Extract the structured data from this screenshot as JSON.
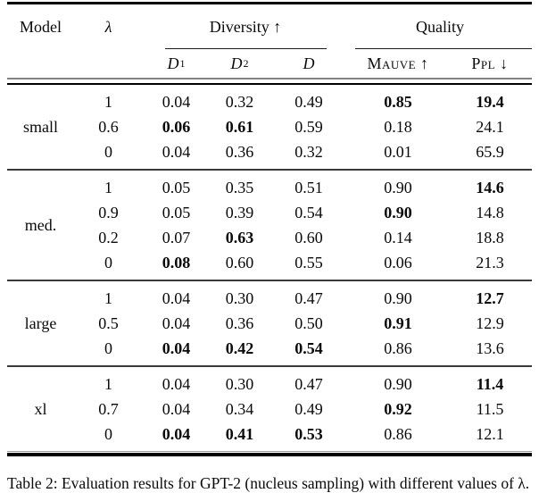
{
  "table": {
    "col_headers": {
      "model": "Model",
      "lambda": "λ",
      "diversity": "Diversity ↑",
      "quality": "Quality",
      "d_base": "D",
      "d1_sub": "1",
      "d2_sub": "2",
      "mauve": "Mauve ↑",
      "ppl": "Ppl ↓"
    },
    "groups": [
      {
        "model": "small",
        "rows": [
          {
            "lambda": "1",
            "cells": [
              {
                "v": "0.04"
              },
              {
                "v": "0.32"
              },
              {
                "v": "0.49"
              },
              {
                "v": "0.85",
                "b": true
              },
              {
                "v": "19.4",
                "b": true
              }
            ]
          },
          {
            "lambda": "0.6",
            "cells": [
              {
                "v": "0.06",
                "b": true
              },
              {
                "v": "0.61",
                "b": true
              },
              {
                "v": "0.59"
              },
              {
                "v": "0.18"
              },
              {
                "v": "24.1"
              }
            ]
          },
          {
            "lambda": "0",
            "cells": [
              {
                "v": "0.04"
              },
              {
                "v": "0.36"
              },
              {
                "v": "0.32"
              },
              {
                "v": "0.01"
              },
              {
                "v": "65.9"
              }
            ]
          }
        ]
      },
      {
        "model": "med.",
        "rows": [
          {
            "lambda": "1",
            "cells": [
              {
                "v": "0.05"
              },
              {
                "v": "0.35"
              },
              {
                "v": "0.51"
              },
              {
                "v": "0.90"
              },
              {
                "v": "14.6",
                "b": true
              }
            ]
          },
          {
            "lambda": "0.9",
            "cells": [
              {
                "v": "0.05"
              },
              {
                "v": "0.39"
              },
              {
                "v": "0.54"
              },
              {
                "v": "0.90",
                "b": true
              },
              {
                "v": "14.8"
              }
            ]
          },
          {
            "lambda": "0.2",
            "cells": [
              {
                "v": "0.07"
              },
              {
                "v": "0.63",
                "b": true
              },
              {
                "v": "0.60"
              },
              {
                "v": "0.14"
              },
              {
                "v": "18.8"
              }
            ]
          },
          {
            "lambda": "0",
            "cells": [
              {
                "v": "0.08",
                "b": true
              },
              {
                "v": "0.60"
              },
              {
                "v": "0.55"
              },
              {
                "v": "0.06"
              },
              {
                "v": "21.3"
              }
            ]
          }
        ]
      },
      {
        "model": "large",
        "rows": [
          {
            "lambda": "1",
            "cells": [
              {
                "v": "0.04"
              },
              {
                "v": "0.30"
              },
              {
                "v": "0.47"
              },
              {
                "v": "0.90"
              },
              {
                "v": "12.7",
                "b": true
              }
            ]
          },
          {
            "lambda": "0.5",
            "cells": [
              {
                "v": "0.04"
              },
              {
                "v": "0.36"
              },
              {
                "v": "0.50"
              },
              {
                "v": "0.91",
                "b": true
              },
              {
                "v": "12.9"
              }
            ]
          },
          {
            "lambda": "0",
            "cells": [
              {
                "v": "0.04",
                "b": true
              },
              {
                "v": "0.42",
                "b": true
              },
              {
                "v": "0.54",
                "b": true
              },
              {
                "v": "0.86"
              },
              {
                "v": "13.6"
              }
            ]
          }
        ]
      },
      {
        "model": "xl",
        "rows": [
          {
            "lambda": "1",
            "cells": [
              {
                "v": "0.04"
              },
              {
                "v": "0.30"
              },
              {
                "v": "0.47"
              },
              {
                "v": "0.90"
              },
              {
                "v": "11.4",
                "b": true
              }
            ]
          },
          {
            "lambda": "0.7",
            "cells": [
              {
                "v": "0.04"
              },
              {
                "v": "0.34"
              },
              {
                "v": "0.49"
              },
              {
                "v": "0.92",
                "b": true
              },
              {
                "v": "11.5"
              }
            ]
          },
          {
            "lambda": "0",
            "cells": [
              {
                "v": "0.04",
                "b": true
              },
              {
                "v": "0.41",
                "b": true
              },
              {
                "v": "0.53",
                "b": true
              },
              {
                "v": "0.86"
              },
              {
                "v": "12.1"
              }
            ]
          }
        ]
      }
    ]
  },
  "caption": {
    "label": "Table 2:",
    "text": "Evaluation results for GPT-2 (nucleus sampling) with different values of λ."
  }
}
